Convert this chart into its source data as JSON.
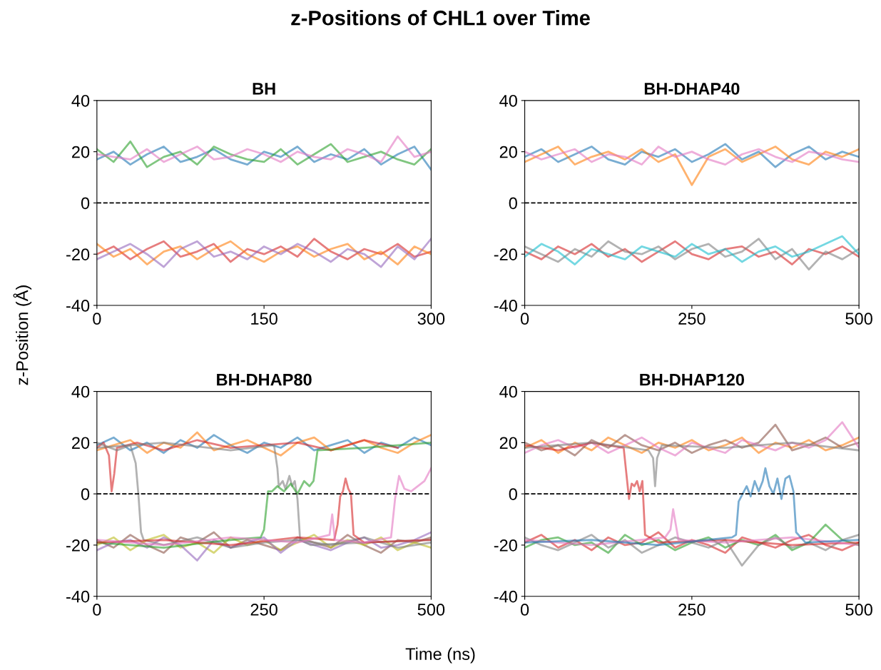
{
  "chart_data": [
    {
      "type": "line",
      "title": "BH",
      "ylabel": "z-Position (Å)",
      "annotations": [
        "z-Positions of CHL1 over Time"
      ],
      "xlim": [
        0,
        300
      ],
      "xticks": [
        0,
        150,
        300
      ],
      "ylim": [
        -40,
        40
      ],
      "yticks": [
        -40,
        -20,
        0,
        20,
        40
      ],
      "grid": false,
      "ref_lines": [
        {
          "axis": "y",
          "value": 0,
          "color": "#000000",
          "line_style": "dashed"
        }
      ],
      "x": [
        0,
        15,
        30,
        45,
        60,
        75,
        90,
        105,
        120,
        135,
        150,
        165,
        180,
        195,
        210,
        225,
        240,
        255,
        270,
        285,
        300
      ],
      "series": [
        {
          "color": "#1f77b4",
          "values": [
            17,
            20,
            15,
            19,
            22,
            16,
            18,
            21,
            17,
            15,
            20,
            18,
            22,
            16,
            19,
            17,
            21,
            15,
            19,
            22,
            13
          ]
        },
        {
          "color": "#2ca02c",
          "values": [
            21,
            16,
            24,
            14,
            18,
            20,
            15,
            22,
            19,
            17,
            16,
            21,
            15,
            19,
            23,
            16,
            18,
            20,
            17,
            15,
            21
          ]
        },
        {
          "color": "#e377c2",
          "values": [
            19,
            18,
            17,
            21,
            16,
            19,
            22,
            17,
            18,
            21,
            19,
            16,
            20,
            18,
            17,
            21,
            19,
            16,
            26,
            18,
            20
          ]
        },
        {
          "color": "#d62728",
          "values": [
            -20,
            -17,
            -22,
            -18,
            -15,
            -21,
            -19,
            -16,
            -23,
            -18,
            -20,
            -17,
            -21,
            -14,
            -19,
            -22,
            -18,
            -20,
            -16,
            -21,
            -19
          ]
        },
        {
          "color": "#ff7f0e",
          "values": [
            -16,
            -21,
            -18,
            -24,
            -19,
            -17,
            -22,
            -18,
            -15,
            -20,
            -23,
            -19,
            -17,
            -21,
            -18,
            -16,
            -22,
            -19,
            -24,
            -17,
            -20
          ]
        },
        {
          "color": "#9467bd",
          "values": [
            -22,
            -19,
            -16,
            -20,
            -25,
            -18,
            -15,
            -21,
            -19,
            -22,
            -17,
            -20,
            -16,
            -19,
            -23,
            -18,
            -20,
            -25,
            -17,
            -22,
            -14
          ]
        }
      ]
    },
    {
      "type": "line",
      "title": "BH-DHAP40",
      "xlim": [
        0,
        500
      ],
      "xticks": [
        0,
        250,
        500
      ],
      "ylim": [
        -40,
        40
      ],
      "yticks": [
        -40,
        -20,
        0,
        20,
        40
      ],
      "grid": false,
      "ref_lines": [
        {
          "axis": "y",
          "value": 0,
          "color": "#000000",
          "line_style": "dashed"
        }
      ],
      "x": [
        0,
        25,
        50,
        75,
        100,
        125,
        150,
        175,
        200,
        225,
        250,
        275,
        300,
        325,
        350,
        375,
        400,
        425,
        450,
        475,
        500
      ],
      "series": [
        {
          "color": "#1f77b4",
          "values": [
            18,
            21,
            16,
            19,
            22,
            17,
            15,
            20,
            18,
            21,
            16,
            19,
            23,
            17,
            20,
            14,
            19,
            22,
            17,
            20,
            18
          ]
        },
        {
          "color": "#ff7f0e",
          "values": [
            16,
            19,
            22,
            15,
            18,
            20,
            17,
            21,
            16,
            19,
            7,
            18,
            21,
            16,
            19,
            22,
            17,
            15,
            20,
            18,
            21
          ]
        },
        {
          "color": "#e377c2",
          "values": [
            20,
            17,
            19,
            21,
            16,
            19,
            18,
            15,
            22,
            18,
            20,
            17,
            15,
            19,
            21,
            18,
            16,
            20,
            19,
            17,
            16
          ]
        },
        {
          "color": "#d62728",
          "values": [
            -19,
            -22,
            -17,
            -20,
            -16,
            -21,
            -18,
            -23,
            -19,
            -15,
            -20,
            -22,
            -18,
            -17,
            -21,
            -19,
            -24,
            -18,
            -20,
            -17,
            -21
          ]
        },
        {
          "color": "#7f7f7f",
          "values": [
            -17,
            -20,
            -23,
            -18,
            -21,
            -15,
            -19,
            -20,
            -17,
            -22,
            -18,
            -16,
            -21,
            -19,
            -14,
            -22,
            -18,
            -26,
            -19,
            -22,
            -18
          ]
        },
        {
          "color": "#17becf",
          "values": [
            -21,
            -16,
            -19,
            -24,
            -18,
            -20,
            -22,
            -17,
            -19,
            -21,
            -16,
            -20,
            -18,
            -23,
            -19,
            -17,
            -21,
            -19,
            -16,
            -13,
            -20
          ]
        }
      ]
    },
    {
      "type": "line",
      "title": "BH-DHAP80",
      "xlabel": "Time (ns)",
      "xlim": [
        0,
        500
      ],
      "xticks": [
        0,
        250,
        500
      ],
      "ylim": [
        -40,
        40
      ],
      "yticks": [
        -40,
        -20,
        0,
        20,
        40
      ],
      "grid": false,
      "ref_lines": [
        {
          "axis": "y",
          "value": 0,
          "color": "#000000",
          "line_style": "dashed"
        }
      ],
      "x": [
        0,
        25,
        50,
        75,
        100,
        125,
        150,
        175,
        200,
        225,
        250,
        275,
        300,
        325,
        350,
        375,
        400,
        425,
        450,
        475,
        500
      ],
      "series": [
        {
          "color": "#1f77b4",
          "values": [
            19,
            22,
            17,
            20,
            16,
            21,
            18,
            23,
            19,
            16,
            20,
            18,
            22,
            17,
            19,
            21,
            16,
            20,
            18,
            22,
            19
          ]
        },
        {
          "color": "#ff7f0e",
          "values": [
            17,
            19,
            21,
            16,
            20,
            18,
            24,
            17,
            19,
            21,
            18,
            15,
            20,
            22,
            17,
            19,
            21,
            18,
            16,
            20,
            23
          ]
        },
        {
          "color": "#8c564b",
          "values": [
            -18,
            -21,
            -16,
            -20,
            -23,
            -17,
            -19,
            -15,
            -21,
            -18,
            -20,
            -22,
            -17,
            -19,
            -21,
            -16,
            -20,
            -23,
            -18,
            -19,
            -17
          ]
        },
        {
          "color": "#bcbd22",
          "values": [
            -20,
            -17,
            -22,
            -18,
            -16,
            -21,
            -19,
            -23,
            -17,
            -20,
            -18,
            -22,
            -19,
            -16,
            -21,
            -18,
            -20,
            -17,
            -22,
            -19,
            -21
          ]
        },
        {
          "color": "#9467bd",
          "values": [
            -22,
            -19,
            -18,
            -21,
            -17,
            -20,
            -26,
            -18,
            -21,
            -19,
            -17,
            -23,
            -18,
            -20,
            -22,
            -19,
            -17,
            -21,
            -20,
            -18,
            -15
          ]
        },
        {
          "color": "#d62728",
          "x": [
            0,
            10,
            18,
            22,
            26,
            30,
            60,
            100,
            150,
            200,
            250,
            300,
            350,
            400,
            450
          ],
          "values": [
            18,
            20,
            15,
            1,
            8,
            18,
            20,
            17,
            21,
            18,
            19,
            20,
            17,
            21,
            18
          ]
        },
        {
          "color": "#7f7f7f",
          "x": [
            0,
            30,
            50,
            58,
            62,
            66,
            70,
            100,
            150,
            200,
            250,
            300,
            350,
            400,
            450,
            500
          ],
          "values": [
            20,
            17,
            19,
            12,
            0,
            -15,
            -18,
            -20,
            -17,
            -21,
            -19,
            -18,
            -20,
            -17,
            -21,
            -19
          ]
        },
        {
          "color": "#7f7f7f",
          "x": [
            0,
            100,
            200,
            265,
            270,
            272,
            278,
            282,
            288,
            292,
            296,
            300,
            304,
            320,
            400,
            500
          ],
          "values": [
            18,
            20,
            17,
            19,
            10,
            3,
            5,
            2,
            7,
            3,
            5,
            -2,
            -18,
            -20,
            -19,
            -18
          ]
        },
        {
          "color": "#2ca02c",
          "x": [
            0,
            100,
            200,
            245,
            250,
            256,
            262,
            270,
            280,
            290,
            300,
            310,
            318,
            324,
            330,
            400,
            500
          ],
          "values": [
            -19,
            -21,
            -18,
            -17,
            -14,
            1,
            1,
            3,
            1,
            4,
            0,
            5,
            3,
            5,
            17,
            18,
            20
          ]
        },
        {
          "color": "#d62728",
          "x": [
            0,
            100,
            200,
            300,
            355,
            360,
            364,
            368,
            372,
            376,
            380,
            384,
            400,
            500
          ],
          "values": [
            -19,
            -18,
            -20,
            -17,
            -18,
            -12,
            -1,
            1,
            6,
            2,
            0,
            -16,
            -19,
            -18
          ]
        },
        {
          "color": "#e377c2",
          "x": [
            0,
            100,
            200,
            300,
            348,
            352,
            356,
            400,
            440,
            446,
            452,
            460,
            470,
            480,
            490,
            500
          ],
          "values": [
            -18,
            -20,
            -17,
            -19,
            -16,
            -8,
            -18,
            -19,
            -17,
            -2,
            7,
            2,
            1,
            3,
            5,
            10
          ]
        }
      ]
    },
    {
      "type": "line",
      "title": "BH-DHAP120",
      "xlim": [
        0,
        500
      ],
      "xticks": [
        0,
        250,
        500
      ],
      "ylim": [
        -40,
        40
      ],
      "yticks": [
        -40,
        -20,
        0,
        20,
        40
      ],
      "grid": false,
      "ref_lines": [
        {
          "axis": "y",
          "value": 0,
          "color": "#000000",
          "line_style": "dashed"
        }
      ],
      "x": [
        0,
        25,
        50,
        75,
        100,
        125,
        150,
        175,
        200,
        225,
        250,
        275,
        300,
        325,
        350,
        375,
        400,
        425,
        450,
        475,
        500
      ],
      "series": [
        {
          "color": "#ff7f0e",
          "values": [
            18,
            21,
            16,
            20,
            17,
            22,
            19,
            16,
            20,
            18,
            21,
            17,
            19,
            22,
            16,
            20,
            18,
            21,
            17,
            19,
            22
          ]
        },
        {
          "color": "#8c564b",
          "values": [
            20,
            17,
            19,
            15,
            21,
            18,
            23,
            19,
            17,
            20,
            16,
            19,
            21,
            18,
            20,
            27,
            17,
            19,
            22,
            18,
            20
          ]
        },
        {
          "color": "#e377c2",
          "values": [
            16,
            19,
            21,
            18,
            20,
            16,
            19,
            22,
            18,
            15,
            20,
            18,
            16,
            21,
            19,
            17,
            20,
            18,
            21,
            28,
            18
          ]
        },
        {
          "color": "#d62728",
          "values": [
            -19,
            -16,
            -21,
            -18,
            -22,
            -17,
            -20,
            -19,
            -15,
            -21,
            -18,
            -20,
            -23,
            -17,
            -19,
            -21,
            -18,
            -16,
            -20,
            -22,
            -19
          ]
        },
        {
          "color": "#2ca02c",
          "values": [
            -21,
            -18,
            -17,
            -20,
            -19,
            -23,
            -16,
            -20,
            -18,
            -22,
            -19,
            -17,
            -21,
            -18,
            -20,
            -16,
            -22,
            -19,
            -12,
            -18,
            -20
          ]
        },
        {
          "color": "#7f7f7f",
          "values": [
            -17,
            -20,
            -22,
            -19,
            -16,
            -21,
            -18,
            -23,
            -20,
            -17,
            -19,
            -21,
            -18,
            -28,
            -20,
            -17,
            -21,
            -19,
            -22,
            -18,
            -16
          ]
        },
        {
          "color": "#d62728",
          "x": [
            0,
            50,
            100,
            148,
            152,
            156,
            160,
            164,
            168,
            172,
            176,
            180,
            200,
            300,
            400,
            500
          ],
          "values": [
            19,
            17,
            20,
            18,
            8,
            -2,
            4,
            3,
            5,
            1,
            5,
            -16,
            -19,
            -18,
            -20,
            -19
          ]
        },
        {
          "color": "#7f7f7f",
          "x": [
            0,
            100,
            185,
            192,
            195,
            198,
            205,
            300,
            400,
            500
          ],
          "values": [
            18,
            20,
            17,
            14,
            3,
            14,
            19,
            18,
            20,
            17
          ]
        },
        {
          "color": "#e377c2",
          "x": [
            0,
            100,
            210,
            218,
            222,
            230,
            300,
            400,
            500
          ],
          "values": [
            -18,
            -20,
            -17,
            -14,
            -6,
            -18,
            -19,
            -17,
            -20
          ]
        },
        {
          "color": "#1f77b4",
          "x": [
            0,
            100,
            200,
            310,
            316,
            320,
            326,
            332,
            338,
            344,
            350,
            356,
            360,
            366,
            372,
            378,
            384,
            390,
            396,
            402,
            406,
            420,
            500
          ],
          "values": [
            -19,
            -18,
            -20,
            -17,
            -16,
            -3,
            0,
            3,
            -1,
            5,
            1,
            5,
            10,
            3,
            0,
            6,
            -2,
            6,
            7,
            1,
            -15,
            -19,
            -18
          ]
        }
      ]
    }
  ]
}
